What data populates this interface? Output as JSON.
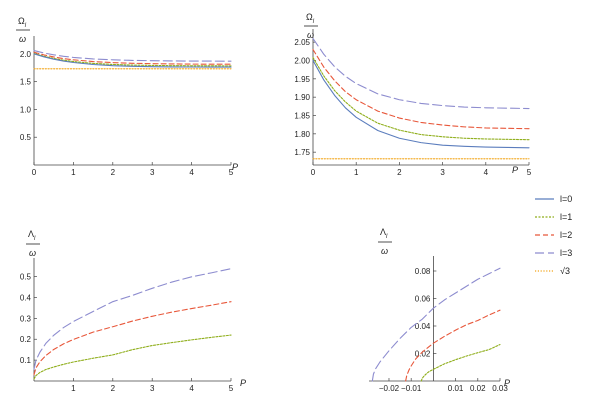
{
  "figure": {
    "legend": {
      "entries": [
        {
          "label": "l=0",
          "color": "#5b7dbd",
          "dash": "solid"
        },
        {
          "label": "l=1",
          "color": "#8fae1b",
          "dash": "short"
        },
        {
          "label": "l=2",
          "color": "#e8573a",
          "dash": "medium"
        },
        {
          "label": "l=3",
          "color": "#8d8ccf",
          "dash": "long"
        },
        {
          "label": "√3",
          "color": "#f2a51a",
          "dash": "dotted"
        }
      ],
      "placement": "right"
    }
  },
  "chart_data": [
    {
      "type": "line",
      "ylabel_num": "Ω",
      "ylabel_sub": "l",
      "ylabel_den": "ω",
      "xlabel": "P",
      "xlim": [
        0,
        5
      ],
      "ylim": [
        0,
        2.25
      ],
      "xticks": [
        0,
        1,
        2,
        3,
        4,
        5
      ],
      "xtick_labels": [
        "0",
        "1",
        "2",
        "3",
        "4",
        "5"
      ],
      "yticks": [
        0.5,
        1.0,
        1.5,
        2.0
      ],
      "ytick_labels": [
        "0.5",
        "1.0",
        "1.5",
        "2.0"
      ],
      "x_axis_at": 0,
      "y_axis_at": 0,
      "x": [
        0,
        0.25,
        0.5,
        0.75,
        1,
        1.5,
        2,
        2.5,
        3,
        3.5,
        4,
        4.5,
        5
      ],
      "series": [
        {
          "name": "l=0",
          "values": [
            2.0,
            1.947,
            1.905,
            1.871,
            1.845,
            1.809,
            1.788,
            1.776,
            1.769,
            1.766,
            1.764,
            1.763,
            1.762
          ]
        },
        {
          "name": "l=1",
          "values": [
            2.008,
            1.958,
            1.918,
            1.887,
            1.862,
            1.829,
            1.81,
            1.798,
            1.792,
            1.788,
            1.786,
            1.785,
            1.784
          ]
        },
        {
          "name": "l=2",
          "values": [
            2.03,
            1.982,
            1.945,
            1.915,
            1.893,
            1.862,
            1.843,
            1.831,
            1.824,
            1.819,
            1.816,
            1.815,
            1.814
          ]
        },
        {
          "name": "l=3",
          "values": [
            2.06,
            2.017,
            1.983,
            1.957,
            1.937,
            1.909,
            1.893,
            1.883,
            1.877,
            1.873,
            1.871,
            1.87,
            1.869
          ]
        },
        {
          "name": "√3",
          "values": [
            1.732,
            1.732,
            1.732,
            1.732,
            1.732,
            1.732,
            1.732,
            1.732,
            1.732,
            1.732,
            1.732,
            1.732,
            1.732
          ]
        }
      ]
    },
    {
      "type": "line",
      "ylabel_num": "Ω",
      "ylabel_sub": "l",
      "ylabel_den": "ω",
      "xlabel": "P",
      "xlim": [
        0,
        5
      ],
      "ylim": [
        1.715,
        2.075
      ],
      "xticks": [
        0,
        1,
        2,
        3,
        4,
        5
      ],
      "xtick_labels": [
        "0",
        "1",
        "2",
        "3",
        "4",
        "5"
      ],
      "yticks": [
        1.75,
        1.8,
        1.85,
        1.9,
        1.95,
        2.0,
        2.05
      ],
      "ytick_labels": [
        "1.75",
        "1.80",
        "1.85",
        "1.90",
        "1.95",
        "2.00",
        "2.05"
      ],
      "x_axis_at": 1.715,
      "y_axis_at": 0,
      "x": [
        0,
        0.25,
        0.5,
        0.75,
        1,
        1.5,
        2,
        2.5,
        3,
        3.5,
        4,
        4.5,
        5
      ],
      "series": [
        {
          "name": "l=0",
          "values": [
            2.0,
            1.947,
            1.905,
            1.871,
            1.845,
            1.809,
            1.788,
            1.776,
            1.769,
            1.766,
            1.764,
            1.763,
            1.762
          ]
        },
        {
          "name": "l=1",
          "values": [
            2.008,
            1.958,
            1.918,
            1.887,
            1.862,
            1.829,
            1.81,
            1.798,
            1.792,
            1.788,
            1.786,
            1.785,
            1.784
          ]
        },
        {
          "name": "l=2",
          "values": [
            2.03,
            1.982,
            1.945,
            1.915,
            1.893,
            1.862,
            1.843,
            1.831,
            1.824,
            1.819,
            1.816,
            1.815,
            1.814
          ]
        },
        {
          "name": "l=3",
          "values": [
            2.06,
            2.017,
            1.983,
            1.957,
            1.937,
            1.909,
            1.893,
            1.883,
            1.877,
            1.873,
            1.871,
            1.87,
            1.869
          ]
        },
        {
          "name": "√3",
          "values": [
            1.732,
            1.732,
            1.732,
            1.732,
            1.732,
            1.732,
            1.732,
            1.732,
            1.732,
            1.732,
            1.732,
            1.732,
            1.732
          ]
        }
      ]
    },
    {
      "type": "line",
      "ylabel_num": "Λ",
      "ylabel_sub": "l",
      "ylabel_den": "ω",
      "xlabel": "P",
      "xlim": [
        0,
        5
      ],
      "ylim": [
        0,
        0.57
      ],
      "xticks": [
        1,
        2,
        3,
        4,
        5
      ],
      "xtick_labels": [
        "1",
        "2",
        "3",
        "4",
        "5"
      ],
      "yticks": [
        0.1,
        0.2,
        0.3,
        0.4,
        0.5
      ],
      "ytick_labels": [
        "0.1",
        "0.2",
        "0.3",
        "0.4",
        "0.5"
      ],
      "x_axis_at": 0,
      "y_axis_at": 0,
      "x": [
        0,
        0.05,
        0.15,
        0.3,
        0.5,
        0.75,
        1,
        1.5,
        2,
        2.5,
        3,
        3.5,
        4,
        4.5,
        5
      ],
      "series": [
        {
          "name": "l=1",
          "values": [
            0.01,
            0.026,
            0.041,
            0.055,
            0.067,
            0.08,
            0.091,
            0.109,
            0.125,
            0.15,
            0.17,
            0.184,
            0.197,
            0.209,
            0.22
          ]
        },
        {
          "name": "l=2",
          "values": [
            0.03,
            0.063,
            0.092,
            0.122,
            0.151,
            0.178,
            0.199,
            0.234,
            0.26,
            0.287,
            0.31,
            0.33,
            0.347,
            0.363,
            0.38
          ]
        },
        {
          "name": "l=3",
          "values": [
            0.056,
            0.099,
            0.138,
            0.18,
            0.219,
            0.256,
            0.285,
            0.333,
            0.38,
            0.41,
            0.444,
            0.474,
            0.499,
            0.518,
            0.538
          ]
        }
      ]
    },
    {
      "type": "line",
      "ylabel_num": "Λ",
      "ylabel_sub": "l",
      "ylabel_den": "ω",
      "xlabel": "P",
      "xlim": [
        -0.029,
        0.03
      ],
      "ylim": [
        0,
        0.088
      ],
      "xticks": [
        -0.02,
        -0.01,
        0.01,
        0.02,
        0.03
      ],
      "xtick_labels": [
        "−0.02",
        "−0.01",
        "0.01",
        "0.02",
        "0.03"
      ],
      "yticks": [
        0.02,
        0.04,
        0.06,
        0.08
      ],
      "ytick_labels": [
        "0.02",
        "0.04",
        "0.06",
        "0.08"
      ],
      "x_axis_at": 0,
      "y_axis_at": 0,
      "series": [
        {
          "name": "l=1",
          "x": [
            -0.0055,
            -0.005,
            -0.004,
            -0.003,
            -0.002,
            0,
            0.005,
            0.01,
            0.015,
            0.02,
            0.025,
            0.03
          ],
          "values": [
            0.0,
            0.002,
            0.004,
            0.0055,
            0.0068,
            0.0085,
            0.0125,
            0.0155,
            0.0182,
            0.0206,
            0.0228,
            0.0265
          ]
        },
        {
          "name": "l=2",
          "x": [
            -0.0125,
            -0.012,
            -0.011,
            -0.01,
            -0.008,
            -0.005,
            0,
            0.005,
            0.01,
            0.015,
            0.02,
            0.025,
            0.03
          ],
          "values": [
            0.0,
            0.004,
            0.008,
            0.011,
            0.016,
            0.021,
            0.0275,
            0.0325,
            0.037,
            0.041,
            0.044,
            0.048,
            0.0515
          ]
        },
        {
          "name": "l=3",
          "x": [
            -0.0275,
            -0.027,
            -0.026,
            -0.024,
            -0.02,
            -0.015,
            -0.01,
            -0.005,
            0,
            0.005,
            0.01,
            0.015,
            0.02,
            0.025,
            0.03
          ],
          "values": [
            0.0,
            0.005,
            0.009,
            0.014,
            0.022,
            0.031,
            0.039,
            0.045,
            0.053,
            0.059,
            0.064,
            0.069,
            0.074,
            0.078,
            0.082
          ]
        }
      ]
    }
  ]
}
